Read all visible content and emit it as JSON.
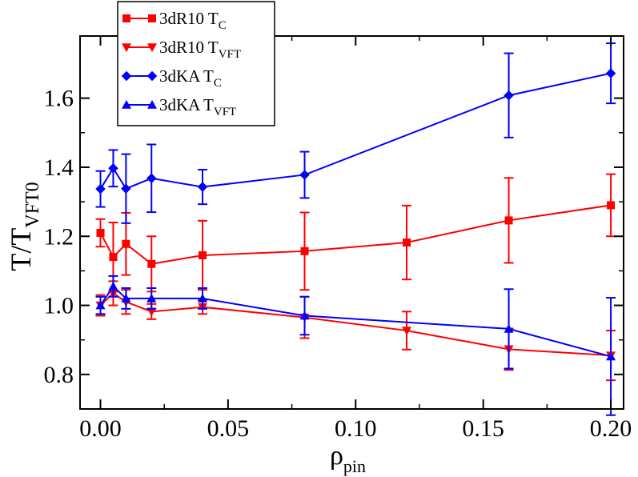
{
  "chart_data": {
    "type": "line",
    "xlabel": "ρ",
    "xlabel_sub": "pin",
    "ylabel": "T/T",
    "ylabel_sub": "VFT0",
    "xlim": [
      -0.008,
      0.205
    ],
    "ylim": [
      0.7,
      1.78
    ],
    "xticks": [
      0.0,
      0.05,
      0.1,
      0.15,
      0.2
    ],
    "xtick_labels": [
      "0.00",
      "0.05",
      "0.10",
      "0.15",
      "0.20"
    ],
    "yticks": [
      0.8,
      1.0,
      1.2,
      1.4,
      1.6
    ],
    "ytick_labels": [
      "0.8",
      "1.0",
      "1.2",
      "1.4",
      "1.6"
    ],
    "grid": false,
    "legend_position": "top-left",
    "series": [
      {
        "name": "3dR10 T",
        "name_sub": "C",
        "color": "#ff0000",
        "marker": "square",
        "x": [
          0.0,
          0.005,
          0.01,
          0.02,
          0.04,
          0.08,
          0.12,
          0.16,
          0.2
        ],
        "y": [
          1.21,
          1.14,
          1.178,
          1.12,
          1.145,
          1.157,
          1.182,
          1.246,
          1.29
        ],
        "err": [
          0.04,
          0.1,
          0.09,
          0.08,
          0.1,
          0.112,
          0.107,
          0.123,
          0.09
        ]
      },
      {
        "name": "3dR10 T",
        "name_sub": "VFT",
        "color": "#ff0000",
        "marker": "triangle-down",
        "x": [
          0.0,
          0.005,
          0.01,
          0.02,
          0.04,
          0.08,
          0.12,
          0.16,
          0.2
        ],
        "y": [
          1.0,
          1.035,
          1.01,
          0.982,
          0.995,
          0.965,
          0.927,
          0.873,
          0.855
        ],
        "err": [
          0.03,
          0.035,
          0.035,
          0.022,
          0.02,
          0.06,
          0.055,
          0.06,
          0.072
        ]
      },
      {
        "name": "3dKA T",
        "name_sub": "C",
        "color": "#0000ff",
        "marker": "diamond",
        "x": [
          0.0,
          0.005,
          0.01,
          0.02,
          0.04,
          0.08,
          0.12,
          0.16,
          0.2
        ],
        "y": [
          1.337,
          1.397,
          1.338,
          1.368,
          1.343,
          1.378,
          null,
          1.608,
          1.672
        ],
        "err": [
          0.052,
          0.053,
          0.1,
          0.098,
          0.05,
          0.067,
          null,
          0.122,
          0.087
        ]
      },
      {
        "name": "3dKA T",
        "name_sub": "VFT",
        "color": "#0000ff",
        "marker": "triangle-up",
        "x": [
          0.0,
          0.005,
          0.01,
          0.02,
          0.04,
          0.08,
          0.12,
          0.16,
          0.2
        ],
        "y": [
          1.0,
          1.055,
          1.02,
          1.02,
          1.02,
          0.97,
          null,
          0.932,
          0.852
        ],
        "err": [
          0.025,
          0.03,
          0.03,
          0.03,
          0.03,
          0.055,
          null,
          0.115,
          0.17
        ]
      }
    ]
  }
}
